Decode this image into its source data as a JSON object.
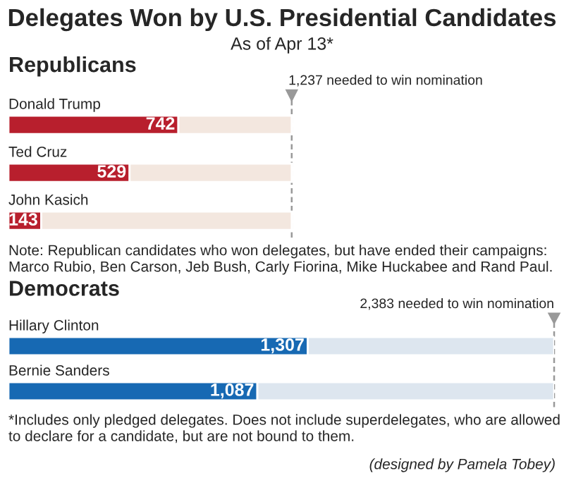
{
  "chart_data": [
    {
      "type": "other",
      "title": "Delegates Won by U.S. Presidential Candidates",
      "subtitle": "As of Apr 13*"
    },
    {
      "type": "bar",
      "orientation": "horizontal",
      "title": "Republicans",
      "categories": [
        "Donald Trump",
        "Ted Cruz",
        "John Kasich"
      ],
      "stacked": true,
      "series": [
        {
          "color": "#b81f2d",
          "values": [
            742,
            529,
            143
          ],
          "value_labels": [
            "742",
            "529",
            "143"
          ]
        },
        {
          "color": "#f3e7df",
          "values": [
            495,
            708,
            1094
          ]
        }
      ],
      "ref_lines": [
        {
          "axis": "x",
          "value": 1237,
          "label": "1,237 needed to win nomination",
          "color": "#999999",
          "line_style": "dashed"
        }
      ],
      "annotations": [
        "Note: Republican candidates who won delegates, but have ended their campaigns: Marco Rubio, Ben Carson, Jeb Bush, Carly Fiorina, Mike Huckabee and Rand Paul."
      ]
    },
    {
      "type": "bar",
      "orientation": "horizontal",
      "title": "Democrats",
      "categories": [
        "Hillary Clinton",
        "Bernie Sanders"
      ],
      "stacked": true,
      "series": [
        {
          "color": "#1769b3",
          "values": [
            1307,
            1087
          ],
          "value_labels": [
            "1,307",
            "1,087"
          ]
        },
        {
          "color": "#dde6ef",
          "values": [
            1076,
            1296
          ]
        }
      ],
      "ref_lines": [
        {
          "axis": "x",
          "value": 2383,
          "label": "2,383 needed to win nomination",
          "color": "#999999",
          "line_style": "dashed"
        }
      ],
      "annotations": [
        "*Includes only pledged delegates. Does not include superdelegates, who are allowed to declare for a candidate, but are not bound to them.",
        "(designed by Pamela Tobey)"
      ]
    }
  ]
}
